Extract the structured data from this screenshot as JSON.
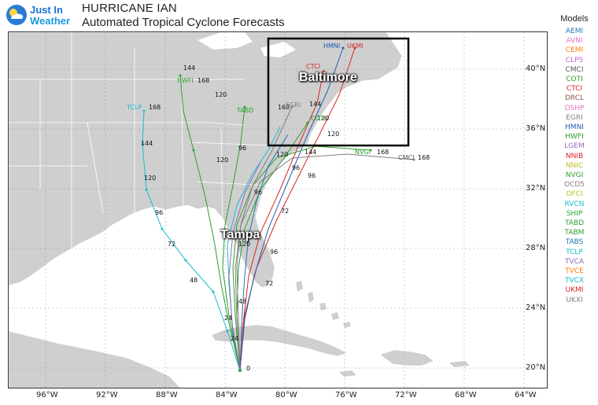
{
  "header": {
    "logo_line1": "Just In",
    "logo_line2": "Weather",
    "title": "HURRICANE IAN",
    "subtitle": "Automated Tropical Cyclone Forecasts"
  },
  "legend": {
    "title": "Models",
    "items": [
      {
        "name": "AEMI",
        "color": "#1f77b4"
      },
      {
        "name": "AVNI",
        "color": "#e377c2"
      },
      {
        "name": "CEMI",
        "color": "#ff7f0e"
      },
      {
        "name": "CLP5",
        "color": "#c860d8"
      },
      {
        "name": "CMCI",
        "color": "#555555"
      },
      {
        "name": "COTI",
        "color": "#2ca02c"
      },
      {
        "name": "CTCI",
        "color": "#d62728"
      },
      {
        "name": "DRCL",
        "color": "#8c564b"
      },
      {
        "name": "DSHP",
        "color": "#e377c2"
      },
      {
        "name": "EGRI",
        "color": "#7f7f7f"
      },
      {
        "name": "HMNI",
        "color": "#1f5fb4"
      },
      {
        "name": "HWFI",
        "color": "#2ca02c"
      },
      {
        "name": "LGEM",
        "color": "#9467bd"
      },
      {
        "name": "NNIB",
        "color": "#d62728"
      },
      {
        "name": "NNIC",
        "color": "#bcbd22"
      },
      {
        "name": "NVGI",
        "color": "#2ca02c"
      },
      {
        "name": "OCD5",
        "color": "#7f7f7f"
      },
      {
        "name": "OFCI",
        "color": "#bcbd22"
      },
      {
        "name": "RVCN",
        "color": "#17becf"
      },
      {
        "name": "SHIP",
        "color": "#2ca02c"
      },
      {
        "name": "TABD",
        "color": "#2ca02c"
      },
      {
        "name": "TABM",
        "color": "#2ca02c"
      },
      {
        "name": "TABS",
        "color": "#1f77b4"
      },
      {
        "name": "TCLP",
        "color": "#17becf"
      },
      {
        "name": "TVCA",
        "color": "#9467bd"
      },
      {
        "name": "TVCE",
        "color": "#ff7f0e"
      },
      {
        "name": "TVCX",
        "color": "#17becf"
      },
      {
        "name": "UKMI",
        "color": "#d62728"
      },
      {
        "name": "UKXI",
        "color": "#7f7f7f"
      }
    ]
  },
  "axes": {
    "lat_labels": [
      "40°N",
      "36°N",
      "32°N",
      "28°N",
      "24°N",
      "20°N"
    ],
    "lon_labels": [
      "96°W",
      "92°W",
      "88°W",
      "84°W",
      "80°W",
      "76°W",
      "72°W",
      "68°W",
      "64°W"
    ]
  },
  "cities": {
    "baltimore": "Baltimore",
    "tampa": "Tampa"
  },
  "track_labels": {
    "hmni": "HMNI",
    "ukmi": "UKMI",
    "ctci": "CTCI",
    "egri": "EGRI",
    "coti": "COTI",
    "tclp": "TCLP",
    "hwfi": "HWFI",
    "tabd": "TABD",
    "nvgi": "NVGI",
    "cmci": "CMCI",
    "h0": "0",
    "h24": "24",
    "h48": "48",
    "h72": "72",
    "h96": "96",
    "h120": "120",
    "h144": "144",
    "h168": "168"
  },
  "colors": {
    "ocean": "#ffffff",
    "land": "#cfcfcf",
    "border": "#ffffff",
    "box": "#000000"
  }
}
